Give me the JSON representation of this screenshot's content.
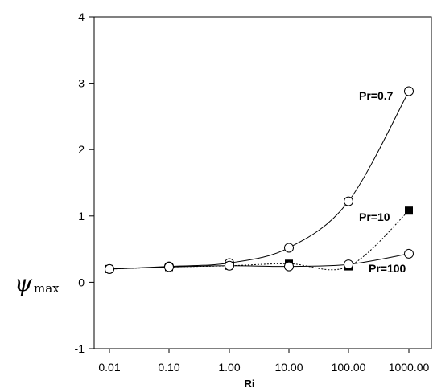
{
  "chart_data": {
    "type": "line",
    "xlabel": "Ri",
    "ylabel": {
      "main": "ψ",
      "sub": "max"
    },
    "x_scale": "log",
    "x": [
      0.01,
      0.1,
      1,
      10,
      100,
      1000
    ],
    "x_tick_labels": [
      "0.01",
      "0.10",
      "1.00",
      "10.00",
      "100.00",
      "1000.00"
    ],
    "ylim": [
      -1,
      4
    ],
    "y_ticks": [
      -1,
      0,
      1,
      2,
      3,
      4
    ],
    "y_tick_labels": [
      "-1",
      "0",
      "1",
      "2",
      "3",
      "4"
    ],
    "grid": false,
    "series": [
      {
        "name": "Pr=0.7",
        "marker": "open-circle",
        "line": "solid",
        "values": [
          0.2,
          0.24,
          0.29,
          0.52,
          1.22,
          2.88
        ]
      },
      {
        "name": "Pr=10",
        "marker": "filled-square",
        "line": "dotted",
        "values": [
          0.2,
          0.23,
          0.25,
          0.28,
          0.24,
          1.08
        ]
      },
      {
        "name": "Pr=100",
        "marker": "open-circle",
        "line": "solid",
        "values": [
          0.2,
          0.23,
          0.25,
          0.24,
          0.27,
          0.43
        ]
      }
    ]
  }
}
